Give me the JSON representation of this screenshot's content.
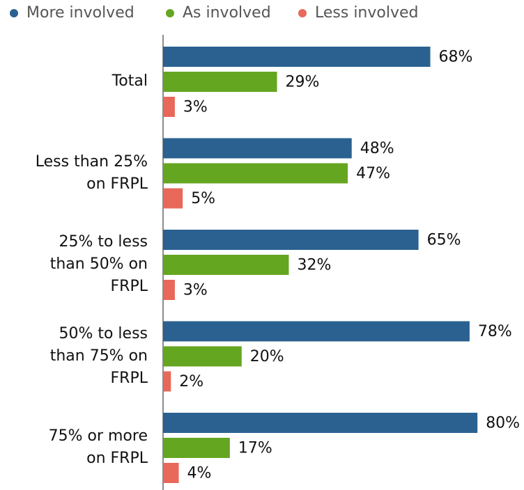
{
  "chart_data": {
    "type": "bar",
    "orientation": "horizontal",
    "categories": [
      "Total",
      "Less than 25% on FRPL",
      "25% to less than 50% on FRPL",
      "50% to less than 75% on FRPL",
      "75% or more on FRPL"
    ],
    "series": [
      {
        "name": "More involved",
        "color": "#2a6190",
        "values": [
          68,
          48,
          65,
          78,
          80
        ],
        "value_labels": [
          "68%",
          "48%",
          "65%",
          "78%",
          "80%"
        ]
      },
      {
        "name": "As involved",
        "color": "#65a621",
        "values": [
          29,
          47,
          32,
          20,
          17
        ],
        "value_labels": [
          "29%",
          "47%",
          "32%",
          "20%",
          "17%"
        ]
      },
      {
        "name": "Less involved",
        "color": "#e8685a",
        "values": [
          3,
          5,
          3,
          2,
          4
        ],
        "value_labels": [
          "3%",
          "5%",
          "3%",
          "2%",
          "4%"
        ]
      }
    ],
    "legend": "top-left"
  }
}
